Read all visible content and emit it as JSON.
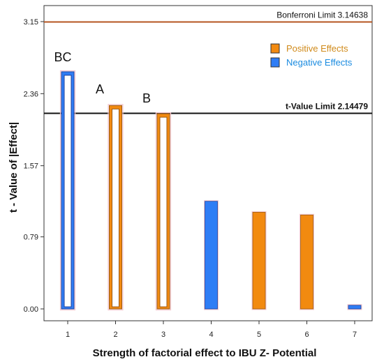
{
  "chart_data": {
    "type": "bar",
    "xlabel": "Strength of factorial effect to IBU Z- Potential",
    "ylabel": "t - Value of  |Effect|",
    "ylim": [
      0,
      3.35
    ],
    "yticks": [
      "0.00",
      "0.79",
      "1.57",
      "2.36",
      "3.15"
    ],
    "ytick_values": [
      0,
      0.79,
      1.57,
      2.36,
      3.15
    ],
    "categories": [
      "1",
      "2",
      "3",
      "4",
      "5",
      "6",
      "7"
    ],
    "values": [
      2.6,
      2.23,
      2.14,
      1.18,
      1.06,
      1.03,
      0.04
    ],
    "effect_sign": [
      "negative",
      "positive",
      "positive",
      "negative",
      "positive",
      "positive",
      "negative"
    ],
    "hollow": [
      true,
      true,
      true,
      false,
      false,
      false,
      false
    ],
    "bar_annotations": [
      "BC",
      "A",
      "B",
      "",
      "",
      "",
      ""
    ],
    "reference_lines": [
      {
        "label": "Bonferroni Limit 3.14638",
        "value": 3.14638,
        "color": "#b5541f"
      },
      {
        "label": "t-Value Limit 2.14479",
        "value": 2.14479,
        "color": "#111111"
      }
    ],
    "legend": {
      "placement": "top-right",
      "items": [
        {
          "label": "Positive Effects",
          "color": "#f28a10",
          "text_color": "#d08a1a"
        },
        {
          "label": "Negative Effects",
          "color": "#2f7df5",
          "text_color": "#1a8be0"
        }
      ]
    },
    "grid": false
  }
}
